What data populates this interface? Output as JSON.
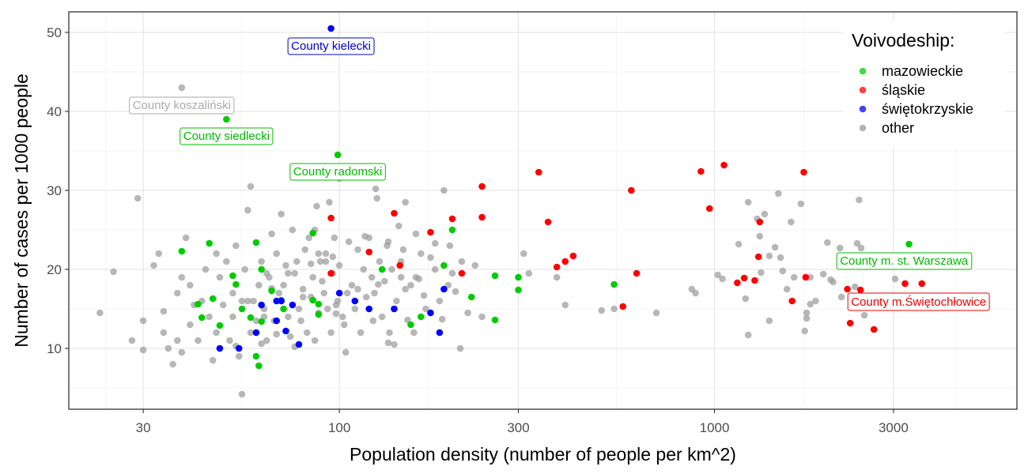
{
  "chart_data": {
    "type": "scatter",
    "xlabel": "Population density (number of people per km^2)",
    "ylabel": "Number of cases per 1000  people",
    "x_scale": "log10",
    "xlim": [
      19,
      6400
    ],
    "ylim": [
      2.3,
      52.6
    ],
    "x_ticks": [
      30,
      100,
      300,
      1000,
      3000
    ],
    "x_tick_labels": [
      "30",
      "100",
      "300",
      "1000",
      "3000"
    ],
    "y_ticks": [
      10,
      20,
      30,
      40,
      50
    ],
    "y_tick_labels": [
      "10",
      "20",
      "30",
      "40",
      "50"
    ],
    "grid": true,
    "legend": {
      "title": "Voivodeship:",
      "position": "top-right",
      "entries": [
        {
          "label": "mazowieckie",
          "color": "#00CC00"
        },
        {
          "label": "śląskie",
          "color": "#FF0000"
        },
        {
          "label": "świętokrzyskie",
          "color": "#0000FF"
        },
        {
          "label": "other",
          "color": "#999999"
        }
      ]
    },
    "series": [
      {
        "name": "mazowieckie",
        "color": "#00CC00",
        "points": [
          [
            50,
            39
          ],
          [
            99,
            34.5
          ],
          [
            3300,
            23.2
          ],
          [
            45,
            23.3
          ],
          [
            60,
            23.4
          ],
          [
            38,
            22.3
          ],
          [
            85,
            24.6
          ],
          [
            200,
            25
          ],
          [
            130,
            20
          ],
          [
            190,
            20.5
          ],
          [
            260,
            19.2
          ],
          [
            300,
            19
          ],
          [
            300,
            17.4
          ],
          [
            540,
            18.1
          ],
          [
            225,
            16.5
          ],
          [
            165,
            14
          ],
          [
            155,
            13
          ],
          [
            260,
            13.6
          ],
          [
            52,
            19.2
          ],
          [
            53,
            18.1
          ],
          [
            62,
            20
          ],
          [
            66,
            17.3
          ],
          [
            70,
            16.1
          ],
          [
            71,
            15
          ],
          [
            85,
            16.1
          ],
          [
            88,
            14.3
          ],
          [
            46,
            16.3
          ],
          [
            42,
            15.6
          ],
          [
            43,
            13.9
          ],
          [
            55,
            15
          ],
          [
            58,
            13.9
          ],
          [
            62,
            13.4
          ],
          [
            48,
            12.9
          ],
          [
            60,
            9
          ],
          [
            61,
            7.8
          ],
          [
            88,
            15.6
          ]
        ]
      },
      {
        "name": "śląskie",
        "color": "#FF0000",
        "points": [
          [
            340,
            32.3
          ],
          [
            920,
            32.4
          ],
          [
            1060,
            33.2
          ],
          [
            1730,
            32.3
          ],
          [
            240,
            30.5
          ],
          [
            600,
            30
          ],
          [
            970,
            27.7
          ],
          [
            140,
            27.1
          ],
          [
            95,
            26.5
          ],
          [
            200,
            26.4
          ],
          [
            240,
            26.6
          ],
          [
            360,
            26
          ],
          [
            1320,
            26
          ],
          [
            175,
            24.7
          ],
          [
            1310,
            21.6
          ],
          [
            400,
            21
          ],
          [
            420,
            21.7
          ],
          [
            380,
            20.3
          ],
          [
            120,
            22.2
          ],
          [
            145,
            20.5
          ],
          [
            212,
            19.5
          ],
          [
            95,
            19.5
          ],
          [
            620,
            19.5
          ],
          [
            1750,
            19
          ],
          [
            1200,
            18.9
          ],
          [
            1280,
            18.6
          ],
          [
            1150,
            18.3
          ],
          [
            3220,
            18.2
          ],
          [
            3570,
            18.2
          ],
          [
            2260,
            17.5
          ],
          [
            2450,
            17.4
          ],
          [
            1610,
            16
          ],
          [
            570,
            15.3
          ],
          [
            2300,
            13.2
          ],
          [
            2660,
            12.4
          ]
        ]
      },
      {
        "name": "świętokrzyskie",
        "color": "#0000FF",
        "points": [
          [
            95,
            50.5
          ],
          [
            48,
            10
          ],
          [
            54,
            10
          ],
          [
            62,
            15.5
          ],
          [
            68,
            16
          ],
          [
            70,
            16
          ],
          [
            72,
            12.2
          ],
          [
            75,
            15.5
          ],
          [
            78,
            10.5
          ],
          [
            60,
            12
          ],
          [
            68,
            13.5
          ],
          [
            100,
            17
          ],
          [
            110,
            16
          ],
          [
            120,
            15
          ],
          [
            140,
            15
          ],
          [
            175,
            14.5
          ],
          [
            185,
            12
          ],
          [
            190,
            17.5
          ]
        ]
      },
      {
        "name": "other",
        "color": "#999999",
        "points": [
          [
            38,
            43
          ],
          [
            29,
            29
          ],
          [
            23,
            14.5
          ],
          [
            25,
            19.7
          ],
          [
            28,
            11
          ],
          [
            30,
            13.5
          ],
          [
            30,
            9.8
          ],
          [
            32,
            20.5
          ],
          [
            33,
            22
          ],
          [
            34,
            14.7
          ],
          [
            34,
            12
          ],
          [
            35,
            10
          ],
          [
            36,
            8
          ],
          [
            37,
            17
          ],
          [
            37,
            11
          ],
          [
            38,
            19
          ],
          [
            38,
            9.5
          ],
          [
            39,
            24
          ],
          [
            40,
            13
          ],
          [
            40,
            18
          ],
          [
            41,
            15.5
          ],
          [
            42,
            11
          ],
          [
            43,
            16
          ],
          [
            44,
            20
          ],
          [
            45,
            14
          ],
          [
            46,
            8.5
          ],
          [
            47,
            12
          ],
          [
            48,
            19
          ],
          [
            49,
            15.5
          ],
          [
            50,
            21
          ],
          [
            51,
            11
          ],
          [
            52,
            17
          ],
          [
            52,
            14
          ],
          [
            53,
            23
          ],
          [
            54,
            9
          ],
          [
            55,
            16
          ],
          [
            56,
            20
          ],
          [
            57,
            27.5
          ],
          [
            58,
            30.5
          ],
          [
            58,
            12
          ],
          [
            59,
            16
          ],
          [
            60,
            13.5
          ],
          [
            61,
            18
          ],
          [
            62,
            21
          ],
          [
            63,
            15
          ],
          [
            64,
            11
          ],
          [
            65,
            19
          ],
          [
            66,
            24.5
          ],
          [
            67,
            13.5
          ],
          [
            68,
            22
          ],
          [
            69,
            17
          ],
          [
            70,
            27
          ],
          [
            71,
            18
          ],
          [
            72,
            20.5
          ],
          [
            73,
            14
          ],
          [
            74,
            11.5
          ],
          [
            75,
            25
          ],
          [
            76,
            19.5
          ],
          [
            77,
            21
          ],
          [
            78,
            15
          ],
          [
            79,
            13.5
          ],
          [
            80,
            17.5
          ],
          [
            81,
            22.5
          ],
          [
            82,
            12
          ],
          [
            83,
            24
          ],
          [
            84,
            16.5
          ],
          [
            85,
            19
          ],
          [
            86,
            11
          ],
          [
            87,
            28
          ],
          [
            88,
            14.5
          ],
          [
            89,
            21
          ],
          [
            90,
            18.5
          ],
          [
            91,
            17
          ],
          [
            92,
            22
          ],
          [
            93,
            15
          ],
          [
            94,
            28.5
          ],
          [
            95,
            12
          ],
          [
            96,
            19.5
          ],
          [
            97,
            24
          ],
          [
            98,
            15.5
          ],
          [
            99,
            16
          ],
          [
            100,
            31.5
          ],
          [
            100,
            20.5
          ],
          [
            102,
            14
          ],
          [
            104,
            9.5
          ],
          [
            106,
            23.5
          ],
          [
            108,
            18
          ],
          [
            110,
            15
          ],
          [
            112,
            22.5
          ],
          [
            114,
            12
          ],
          [
            116,
            20
          ],
          [
            118,
            16.5
          ],
          [
            120,
            24
          ],
          [
            122,
            19
          ],
          [
            124,
            17
          ],
          [
            126,
            29
          ],
          [
            128,
            21
          ],
          [
            130,
            14
          ],
          [
            132,
            18.5
          ],
          [
            134,
            23
          ],
          [
            136,
            12
          ],
          [
            138,
            20
          ],
          [
            140,
            10.5
          ],
          [
            142,
            16
          ],
          [
            144,
            25.5
          ],
          [
            146,
            19
          ],
          [
            148,
            22.5
          ],
          [
            150,
            17.5
          ],
          [
            155,
            18
          ],
          [
            160,
            19
          ],
          [
            165,
            22
          ],
          [
            170,
            15
          ],
          [
            175,
            21.5
          ],
          [
            180,
            20
          ],
          [
            185,
            16
          ],
          [
            190,
            30
          ],
          [
            195,
            18
          ],
          [
            200,
            19.5
          ],
          [
            210,
            10
          ],
          [
            220,
            14.5
          ],
          [
            230,
            20.5
          ],
          [
            240,
            14
          ],
          [
            310,
            22
          ],
          [
            320,
            19.5
          ],
          [
            380,
            19
          ],
          [
            400,
            15.5
          ],
          [
            500,
            14.8
          ],
          [
            540,
            15
          ],
          [
            700,
            14.5
          ],
          [
            870,
            17.5
          ],
          [
            890,
            17
          ],
          [
            1020,
            19.3
          ],
          [
            1050,
            18.8
          ],
          [
            1160,
            23.2
          ],
          [
            1210,
            16.3
          ],
          [
            1230,
            28.5
          ],
          [
            1230,
            11.7
          ],
          [
            1300,
            26.4
          ],
          [
            1320,
            24.2
          ],
          [
            1330,
            19.6
          ],
          [
            1360,
            27
          ],
          [
            1400,
            13.5
          ],
          [
            1400,
            21.7
          ],
          [
            1450,
            22.8
          ],
          [
            1480,
            29.6
          ],
          [
            1500,
            21.5
          ],
          [
            1520,
            19.8
          ],
          [
            1560,
            17.5
          ],
          [
            1600,
            26
          ],
          [
            1630,
            19
          ],
          [
            1700,
            28.3
          ],
          [
            1740,
            12.2
          ],
          [
            1760,
            14.5
          ],
          [
            1760,
            13.8
          ],
          [
            1800,
            15.6
          ],
          [
            1800,
            19
          ],
          [
            1860,
            16
          ],
          [
            1950,
            19.4
          ],
          [
            2000,
            23.4
          ],
          [
            2040,
            18.7
          ],
          [
            2070,
            18.4
          ],
          [
            2160,
            22.7
          ],
          [
            2180,
            16.5
          ],
          [
            2370,
            17.8
          ],
          [
            2400,
            23.3
          ],
          [
            2430,
            28.8
          ],
          [
            2460,
            22.7
          ],
          [
            2470,
            21.4
          ],
          [
            2510,
            14.2
          ],
          [
            3030,
            18.8
          ],
          [
            125,
            30.2
          ],
          [
            135,
            23.5
          ],
          [
            150,
            28.5
          ],
          [
            160,
            24.5
          ],
          [
            80,
            16.5
          ],
          [
            73,
            19.5
          ],
          [
            47,
            22
          ],
          [
            55,
            4.2
          ],
          [
            53,
            10.3
          ],
          [
            57,
            16
          ],
          [
            62,
            10.6
          ],
          [
            63,
            14
          ],
          [
            64,
            19.5
          ],
          [
            66,
            17.6
          ],
          [
            68,
            11.8
          ],
          [
            76,
            10.2
          ],
          [
            84,
            20.7
          ],
          [
            86,
            25
          ],
          [
            88,
            22
          ],
          [
            92,
            21
          ],
          [
            96,
            21.6
          ],
          [
            98,
            14.4
          ],
          [
            103,
            13
          ],
          [
            105,
            17
          ],
          [
            112,
            17.5
          ],
          [
            117,
            24.2
          ],
          [
            123,
            13.5
          ],
          [
            127,
            18.1
          ],
          [
            135,
            10.7
          ],
          [
            146,
            21
          ],
          [
            152,
            13.6
          ],
          [
            158,
            12
          ],
          [
            163,
            18.8
          ],
          [
            168,
            16.7
          ],
          [
            180,
            23.3
          ],
          [
            188,
            13.7
          ],
          [
            197,
            23
          ],
          [
            204,
            17.2
          ],
          [
            212,
            21
          ]
        ]
      }
    ],
    "annotations": [
      {
        "text": "County kielecki",
        "color": "#0000CC",
        "x": 95,
        "y": 50.5,
        "label_x": 95,
        "label_y": 48.3
      },
      {
        "text": "County koszaliński",
        "color": "#AAAAAA",
        "x": 38,
        "y": 43,
        "label_x": 38,
        "label_y": 40.8
      },
      {
        "text": "County siedlecki",
        "color": "#00BB00",
        "x": 50,
        "y": 39,
        "label_x": 50,
        "label_y": 36.9
      },
      {
        "text": "County radomski",
        "color": "#00BB00",
        "x": 99,
        "y": 34.5,
        "label_x": 99,
        "label_y": 32.4
      },
      {
        "text": "County m. st. Warszawa",
        "color": "#00BB00",
        "x": 3300,
        "y": 23.2,
        "label_x": 3200,
        "label_y": 21.1
      },
      {
        "text": "County m.Świętochłowice",
        "color": "#EE0000",
        "x": 2660,
        "y": 12.4,
        "label_x": 3500,
        "label_y": 15.9
      }
    ]
  }
}
